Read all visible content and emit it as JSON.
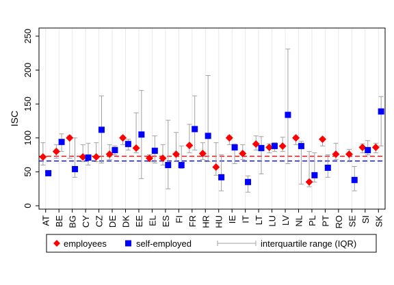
{
  "chart_data": {
    "type": "scatter",
    "ylabel": "ISC",
    "xlabel": "",
    "ylim": [
      -5,
      262
    ],
    "yticks": [
      0,
      50,
      100,
      150,
      200,
      250
    ],
    "grid": "vertical",
    "legend_placement": "bottom",
    "categories": [
      "AT",
      "BE",
      "BG",
      "CY",
      "CZ",
      "DE",
      "DK",
      "EE",
      "EL",
      "ES",
      "FI",
      "FR",
      "HR",
      "HU",
      "IE",
      "IT",
      "LT",
      "LU",
      "LV",
      "NL",
      "PL",
      "PT",
      "RO",
      "SE",
      "SI",
      "SK"
    ],
    "series": [
      {
        "name": "employees",
        "marker": "diamond",
        "color": "#ff0000",
        "values": [
          72,
          80,
          100,
          72,
          72,
          76,
          100,
          85,
          70,
          70,
          76,
          89,
          77,
          57,
          100,
          77,
          91,
          86,
          88,
          100,
          35,
          98,
          76,
          76,
          86,
          86
        ],
        "iqr_low": [
          60,
          70,
          70,
          65,
          65,
          68,
          90,
          78,
          65,
          60,
          65,
          78,
          68,
          45,
          90,
          68,
          82,
          78,
          80,
          90,
          28,
          88,
          68,
          65,
          78,
          78
        ],
        "iqr_high": [
          93,
          90,
          103,
          90,
          93,
          90,
          103,
          137,
          75,
          90,
          108,
          120,
          93,
          93,
          103,
          90,
          103,
          91,
          101,
          103,
          80,
          100,
          92,
          83,
          91,
          92
        ]
      },
      {
        "name": "self-employed",
        "marker": "square",
        "color": "#0000ff",
        "values": [
          48,
          94,
          54,
          71,
          112,
          82,
          91,
          105,
          81,
          60,
          60,
          113,
          103,
          42,
          86,
          35,
          85,
          88,
          134,
          88,
          45,
          56,
          null,
          38,
          82,
          139
        ],
        "iqr_low": [
          null,
          80,
          42,
          60,
          63,
          75,
          82,
          40,
          63,
          25,
          55,
          82,
          65,
          22,
          62,
          20,
          47,
          80,
          62,
          32,
          35,
          42,
          null,
          22,
          75,
          88
        ],
        "iqr_high": [
          null,
          106,
          100,
          92,
          162,
          88,
          98,
          170,
          103,
          126,
          88,
          162,
          192,
          75,
          91,
          44,
          102,
          93,
          231,
          95,
          78,
          75,
          null,
          58,
          96,
          161
        ]
      }
    ],
    "reference_lines": [
      {
        "series": "employees",
        "value": 73,
        "color": "#ff0000",
        "style": "dashed"
      },
      {
        "series": "self-employed",
        "value": 66,
        "color": "#0000cc",
        "style": "dashed"
      }
    ],
    "legend": [
      {
        "label": "employees",
        "symbol": "diamond",
        "color": "#ff0000"
      },
      {
        "label": "self-employed",
        "symbol": "square",
        "color": "#0000ff"
      },
      {
        "label": "interquartile range (IQR)",
        "symbol": "capped-line",
        "color": "#999999"
      }
    ]
  }
}
